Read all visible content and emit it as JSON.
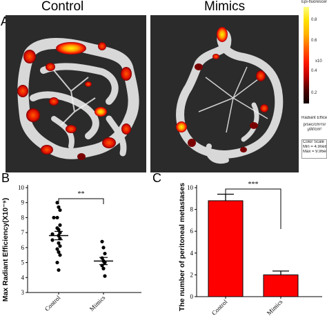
{
  "panels": {
    "a_letter": "A",
    "b_letter": "B",
    "c_letter": "C"
  },
  "panel_a": {
    "titles": [
      "Control",
      "Mimics"
    ],
    "colorbar": {
      "title": "Epi-fluorescence",
      "ticks": [
        "0.8",
        "0.6",
        "x10",
        "0.4",
        "0.2"
      ],
      "unit_label": "Radiant Efficiency",
      "unit_sub": "p/sec/cm²/sr\nµW/cm²",
      "scale_label": "Color Scale",
      "min_label": "Min = 4.90e8",
      "max_label": "Max = 9.96e8"
    },
    "colors": {
      "background": "#2b2b2b",
      "tissue": "#dcdcdc",
      "hot": "#ff1a00",
      "hottest": "#ffe000",
      "dark": "#6a0000"
    }
  },
  "chart_data": [
    {
      "type": "scatter",
      "panel": "B",
      "ylabel": "Max Radiant Efficiency(X10⁻⁹)",
      "categories": [
        "Control",
        "Mimics"
      ],
      "ylim": [
        3,
        10
      ],
      "yticks": [
        "3",
        "4",
        "5",
        "6",
        "7",
        "8",
        "9",
        "10"
      ],
      "series": [
        {
          "name": "Control",
          "values": [
            9.0,
            8.7,
            8.5,
            8.0,
            8.0,
            7.5,
            7.3,
            7.2,
            7.0,
            6.9,
            6.8,
            6.6,
            6.5,
            6.3,
            6.1,
            5.9,
            5.7,
            5.5,
            5.0,
            4.5
          ],
          "mean": 6.8,
          "sem": 0.28
        },
        {
          "name": "Mimics",
          "values": [
            6.4,
            6.0,
            5.6,
            5.3,
            5.1,
            5.0,
            4.8,
            4.6,
            4.1
          ],
          "mean": 5.1,
          "sem": 0.24
        }
      ],
      "significance": "**"
    },
    {
      "type": "bar",
      "panel": "C",
      "ylabel": "The number of peritoneal metastases",
      "categories": [
        "Control",
        "Mimics"
      ],
      "values": [
        8.8,
        2.0
      ],
      "errors": [
        0.6,
        0.35
      ],
      "ylim": [
        0,
        10
      ],
      "yticks": [
        "0",
        "2",
        "4",
        "6",
        "8",
        "10"
      ],
      "bar_color": "#ff0000",
      "significance": "***"
    }
  ]
}
